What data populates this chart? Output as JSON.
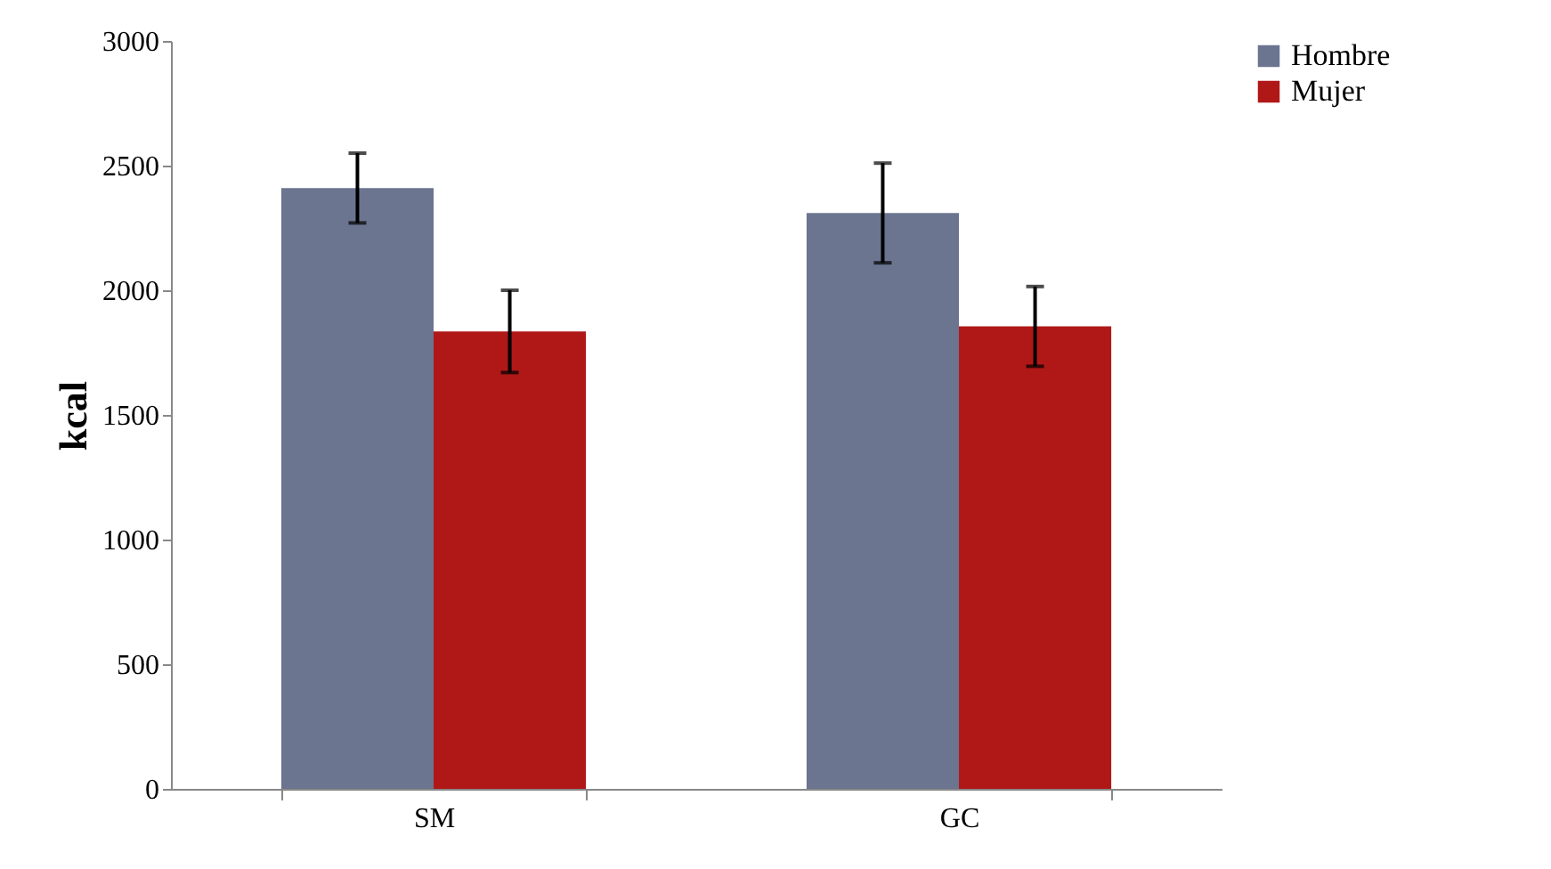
{
  "chart_data": {
    "type": "bar",
    "ylabel": "kcal",
    "categories": [
      "SM",
      "GC"
    ],
    "series": [
      {
        "name": "Hombre",
        "color": "#6b7590",
        "values": [
          2410,
          2310
        ],
        "errors": [
          140,
          200
        ]
      },
      {
        "name": "Mujer",
        "color": "#b01818",
        "values": [
          1835,
          1855
        ],
        "errors": [
          165,
          160
        ]
      }
    ],
    "ylim": [
      0,
      3000
    ],
    "yticks": [
      0,
      500,
      1000,
      1500,
      2000,
      2500,
      3000
    ],
    "grid": false,
    "legend": "right"
  }
}
